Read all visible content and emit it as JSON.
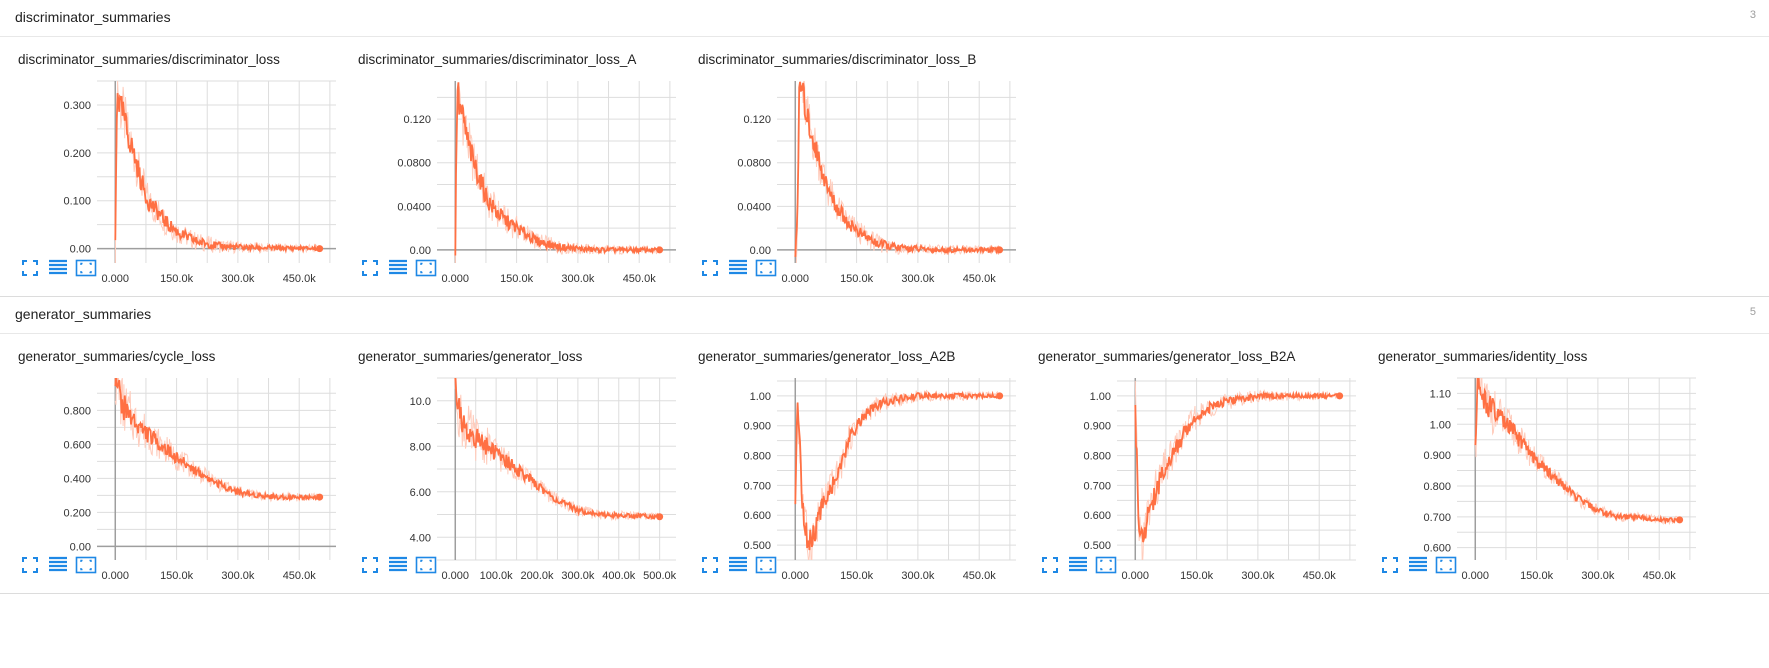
{
  "colors": {
    "line": "#ff7043",
    "line_raw": "#ffccbc",
    "icon": "#1e88e5",
    "grid": "#dddddd",
    "axis": "#9e9e9e"
  },
  "toolbar_icons": [
    "fullscreen-icon",
    "data-table-icon",
    "fit-domain-icon"
  ],
  "groups": [
    {
      "title": "discriminator_summaries",
      "count": "3",
      "charts": [
        {
          "title": "discriminator_summaries/discriminator_loss",
          "chart_data": {
            "type": "line",
            "xlim": [
              -30000,
              540000
            ],
            "ylim": [
              -0.03,
              0.35
            ],
            "x_ticks": [
              0,
              150000,
              300000,
              450000
            ],
            "x_tick_labels": [
              "0.000",
              "150.0k",
              "300.0k",
              "450.0k"
            ],
            "y_ticks": [
              0,
              0.1,
              0.2,
              0.3
            ],
            "y_tick_labels": [
              "0.00",
              "0.100",
              "0.200",
              "0.300"
            ],
            "series": [
              {
                "x": [
                  0,
                  5000,
                  10000,
                  20000,
                  30000,
                  45000,
                  60000,
                  80000,
                  100000,
                  130000,
                  160000,
                  200000,
                  250000,
                  300000,
                  350000,
                  400000,
                  450000,
                  500000
                ],
                "values": [
                  0.01,
                  0.35,
                  0.3,
                  0.28,
                  0.24,
                  0.2,
                  0.15,
                  0.1,
                  0.08,
                  0.05,
                  0.03,
                  0.015,
                  0.006,
                  0.003,
                  0.002,
                  0.001,
                  0.001,
                  0.0
                ]
              }
            ]
          }
        },
        {
          "title": "discriminator_summaries/discriminator_loss_A",
          "chart_data": {
            "type": "line",
            "xlim": [
              -30000,
              540000
            ],
            "ylim": [
              -0.012,
              0.155
            ],
            "x_ticks": [
              0,
              150000,
              300000,
              450000
            ],
            "x_tick_labels": [
              "0.000",
              "150.0k",
              "300.0k",
              "450.0k"
            ],
            "y_ticks": [
              0,
              0.04,
              0.08,
              0.12
            ],
            "y_tick_labels": [
              "0.00",
              "0.0400",
              "0.0800",
              "0.120"
            ],
            "series": [
              {
                "x": [
                  0,
                  5000,
                  10000,
                  20000,
                  30000,
                  45000,
                  60000,
                  80000,
                  100000,
                  130000,
                  160000,
                  200000,
                  250000,
                  300000,
                  350000,
                  400000,
                  450000,
                  500000
                ],
                "values": [
                  0.0,
                  0.155,
                  0.13,
                  0.12,
                  0.1,
                  0.08,
                  0.065,
                  0.045,
                  0.035,
                  0.025,
                  0.018,
                  0.008,
                  0.003,
                  0.001,
                  0.0,
                  0.0,
                  0.0,
                  0.0
                ]
              }
            ]
          }
        },
        {
          "title": "discriminator_summaries/discriminator_loss_B",
          "chart_data": {
            "type": "line",
            "xlim": [
              -30000,
              540000
            ],
            "ylim": [
              -0.012,
              0.155
            ],
            "x_ticks": [
              0,
              150000,
              300000,
              450000
            ],
            "x_tick_labels": [
              "0.000",
              "150.0k",
              "300.0k",
              "450.0k"
            ],
            "y_ticks": [
              0,
              0.04,
              0.08,
              0.12
            ],
            "y_tick_labels": [
              "0.00",
              "0.0400",
              "0.0800",
              "0.120"
            ],
            "series": [
              {
                "x": [
                  0,
                  5000,
                  10000,
                  20000,
                  30000,
                  45000,
                  60000,
                  80000,
                  100000,
                  130000,
                  160000,
                  200000,
                  250000,
                  300000,
                  350000,
                  400000,
                  450000,
                  500000
                ],
                "values": [
                  0.0,
                  0.01,
                  0.155,
                  0.14,
                  0.12,
                  0.1,
                  0.08,
                  0.055,
                  0.04,
                  0.025,
                  0.015,
                  0.006,
                  0.002,
                  0.001,
                  0.0,
                  0.0,
                  0.0,
                  0.0
                ]
              }
            ]
          }
        }
      ]
    },
    {
      "title": "generator_summaries",
      "count": "5",
      "charts": [
        {
          "title": "generator_summaries/cycle_loss",
          "chart_data": {
            "type": "line",
            "xlim": [
              -30000,
              540000
            ],
            "ylim": [
              -0.08,
              0.99
            ],
            "x_ticks": [
              0,
              150000,
              300000,
              450000
            ],
            "x_tick_labels": [
              "0.000",
              "150.0k",
              "300.0k",
              "450.0k"
            ],
            "y_ticks": [
              0,
              0.2,
              0.4,
              0.6,
              0.8
            ],
            "y_tick_labels": [
              "0.00",
              "0.200",
              "0.400",
              "0.600",
              "0.800"
            ],
            "series": [
              {
                "x": [
                  0,
                  10000,
                  20000,
                  40000,
                  60000,
                  90000,
                  120000,
                  150000,
                  200000,
                  250000,
                  300000,
                  350000,
                  400000,
                  450000,
                  500000
                ],
                "values": [
                  1.0,
                  0.9,
                  0.82,
                  0.76,
                  0.7,
                  0.64,
                  0.58,
                  0.52,
                  0.44,
                  0.37,
                  0.32,
                  0.3,
                  0.29,
                  0.29,
                  0.29
                ]
              }
            ]
          }
        },
        {
          "title": "generator_summaries/generator_loss",
          "chart_data": {
            "type": "line",
            "xlim": [
              -30000,
              540000
            ],
            "ylim": [
              3.0,
              11.0
            ],
            "x_ticks": [
              0,
              100000,
              200000,
              300000,
              400000,
              500000
            ],
            "x_tick_labels": [
              "0.000",
              "100.0k",
              "200.0k",
              "300.0k",
              "400.0k",
              "500.0k"
            ],
            "y_ticks": [
              4,
              6,
              8,
              10
            ],
            "y_tick_labels": [
              "4.00",
              "6.00",
              "8.00",
              "10.0"
            ],
            "series": [
              {
                "x": [
                  0,
                  10000,
                  20000,
                  40000,
                  70000,
                  100000,
                  150000,
                  200000,
                  250000,
                  300000,
                  350000,
                  400000,
                  450000,
                  500000
                ],
                "values": [
                  11.0,
                  9.5,
                  8.9,
                  8.5,
                  8.1,
                  7.7,
                  7.0,
                  6.3,
                  5.6,
                  5.2,
                  5.0,
                  4.95,
                  4.95,
                  4.9
                ]
              }
            ]
          }
        },
        {
          "title": "generator_summaries/generator_loss_A2B",
          "chart_data": {
            "type": "line",
            "xlim": [
              -30000,
              540000
            ],
            "ylim": [
              0.45,
              1.06
            ],
            "x_ticks": [
              0,
              150000,
              300000,
              450000
            ],
            "x_tick_labels": [
              "0.000",
              "150.0k",
              "300.0k",
              "450.0k"
            ],
            "y_ticks": [
              0.5,
              0.6,
              0.7,
              0.8,
              0.9,
              1.0
            ],
            "y_tick_labels": [
              "0.500",
              "0.600",
              "0.700",
              "0.800",
              "0.900",
              "1.00"
            ],
            "series": [
              {
                "x": [
                  0,
                  5000,
                  10000,
                  20000,
                  30000,
                  50000,
                  70000,
                  90000,
                  110000,
                  130000,
                  150000,
                  180000,
                  220000,
                  260000,
                  300000,
                  400000,
                  500000
                ],
                "values": [
                  0.6,
                  1.0,
                  0.85,
                  0.6,
                  0.5,
                  0.55,
                  0.65,
                  0.7,
                  0.75,
                  0.85,
                  0.9,
                  0.95,
                  0.98,
                  0.99,
                  1.0,
                  1.0,
                  1.0
                ]
              }
            ]
          }
        },
        {
          "title": "generator_summaries/generator_loss_B2A",
          "chart_data": {
            "type": "line",
            "xlim": [
              -30000,
              540000
            ],
            "ylim": [
              0.45,
              1.06
            ],
            "x_ticks": [
              0,
              150000,
              300000,
              450000
            ],
            "x_tick_labels": [
              "0.000",
              "150.0k",
              "300.0k",
              "450.0k"
            ],
            "y_ticks": [
              0.5,
              0.6,
              0.7,
              0.8,
              0.9,
              1.0
            ],
            "y_tick_labels": [
              "0.500",
              "0.600",
              "0.700",
              "0.800",
              "0.900",
              "1.00"
            ],
            "series": [
              {
                "x": [
                  0,
                  5000,
                  10000,
                  20000,
                  30000,
                  50000,
                  70000,
                  90000,
                  110000,
                  130000,
                  150000,
                  180000,
                  220000,
                  260000,
                  300000,
                  400000,
                  500000
                ],
                "values": [
                  1.0,
                  0.7,
                  0.55,
                  0.5,
                  0.6,
                  0.68,
                  0.75,
                  0.8,
                  0.85,
                  0.9,
                  0.93,
                  0.96,
                  0.98,
                  0.99,
                  1.0,
                  1.0,
                  1.0
                ]
              }
            ]
          }
        },
        {
          "title": "generator_summaries/identity_loss",
          "chart_data": {
            "type": "line",
            "xlim": [
              -30000,
              540000
            ],
            "ylim": [
              0.56,
              1.15
            ],
            "x_ticks": [
              0,
              150000,
              300000,
              450000
            ],
            "x_tick_labels": [
              "0.000",
              "150.0k",
              "300.0k",
              "450.0k"
            ],
            "y_ticks": [
              0.6,
              0.7,
              0.8,
              0.9,
              1.0,
              1.1
            ],
            "y_tick_labels": [
              "0.600",
              "0.700",
              "0.800",
              "0.900",
              "1.00",
              "1.10"
            ],
            "series": [
              {
                "x": [
                  0,
                  5000,
                  10000,
                  20000,
                  40000,
                  60000,
                  90000,
                  120000,
                  150000,
                  200000,
                  250000,
                  300000,
                  350000,
                  400000,
                  450000,
                  500000
                ],
                "values": [
                  0.9,
                  1.15,
                  1.1,
                  1.08,
                  1.05,
                  1.02,
                  0.98,
                  0.93,
                  0.88,
                  0.82,
                  0.76,
                  0.72,
                  0.7,
                  0.7,
                  0.69,
                  0.69
                ]
              }
            ]
          }
        }
      ]
    }
  ]
}
